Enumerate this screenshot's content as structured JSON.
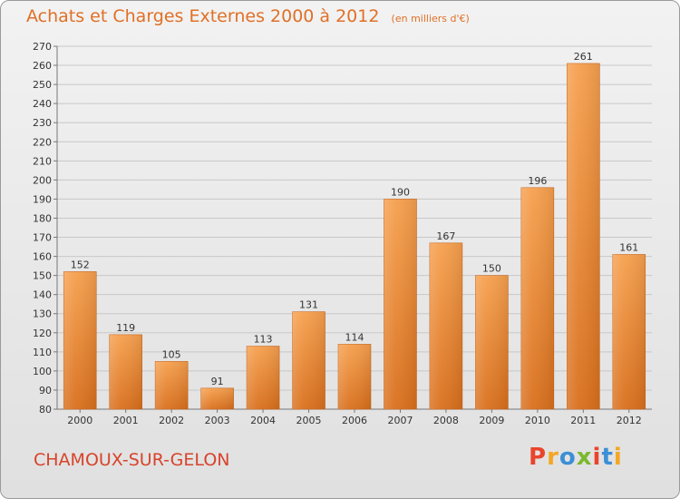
{
  "chart_data": {
    "type": "bar",
    "title": "Achats et Charges Externes 2000 à 2012",
    "subtitle": "(en milliers d'€)",
    "categories": [
      "2000",
      "2001",
      "2002",
      "2003",
      "2004",
      "2005",
      "2006",
      "2007",
      "2008",
      "2009",
      "2010",
      "2011",
      "2012"
    ],
    "values": [
      152,
      119,
      105,
      91,
      113,
      131,
      114,
      190,
      167,
      150,
      196,
      261,
      161
    ],
    "ylim": [
      80,
      270
    ],
    "yticks": [
      80,
      90,
      100,
      110,
      120,
      130,
      140,
      150,
      160,
      170,
      180,
      190,
      200,
      210,
      220,
      230,
      240,
      250,
      260,
      270
    ],
    "grid": true,
    "bar_color_top": "#f6a04e",
    "bar_color_bottom": "#d96f1c"
  },
  "footer": {
    "commune": "CHAMOUX-SUR-GELON",
    "logo_text": "Proxiti",
    "logo_colors": [
      "#e8452c",
      "#f5a623",
      "#3b8fd6",
      "#7cb82f",
      "#e8452c",
      "#3b8fd6",
      "#f5a623"
    ]
  }
}
